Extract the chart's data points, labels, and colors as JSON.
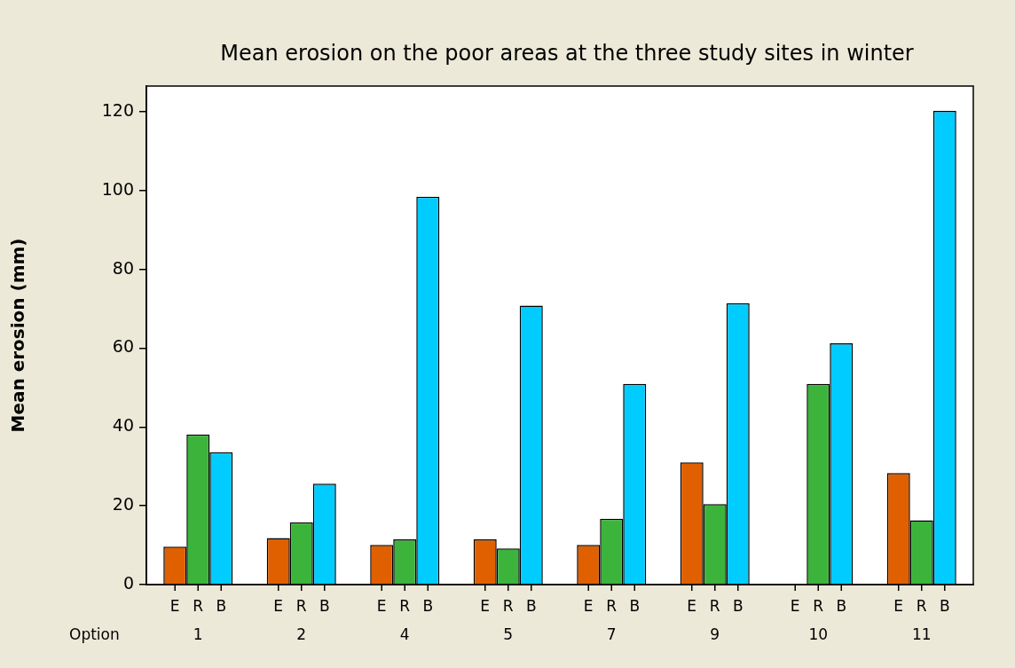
{
  "chart_data": {
    "type": "bar",
    "title": "Mean erosion on the poor areas at the three study sites in winter",
    "ylabel": "Mean erosion (mm)",
    "xlabel": "Option",
    "categories": [
      "1",
      "2",
      "4",
      "5",
      "7",
      "9",
      "10",
      "11"
    ],
    "series": [
      {
        "name": "E",
        "color": "#e06000",
        "values": [
          9.6,
          11.8,
          10.1,
          11.5,
          10.1,
          31.0,
          null,
          28.3
        ]
      },
      {
        "name": "R",
        "color": "#3cb43c",
        "values": [
          38.1,
          15.8,
          11.5,
          9.2,
          16.7,
          20.4,
          50.9,
          16.3
        ]
      },
      {
        "name": "B",
        "color": "#00ccff",
        "values": [
          33.6,
          25.6,
          98.4,
          70.8,
          50.9,
          71.4,
          61.2,
          120.2
        ]
      }
    ],
    "ylim": [
      0,
      126.5
    ],
    "yticks": [
      0,
      20,
      40,
      60,
      80,
      100,
      120
    ],
    "grid": false,
    "legend": false
  }
}
